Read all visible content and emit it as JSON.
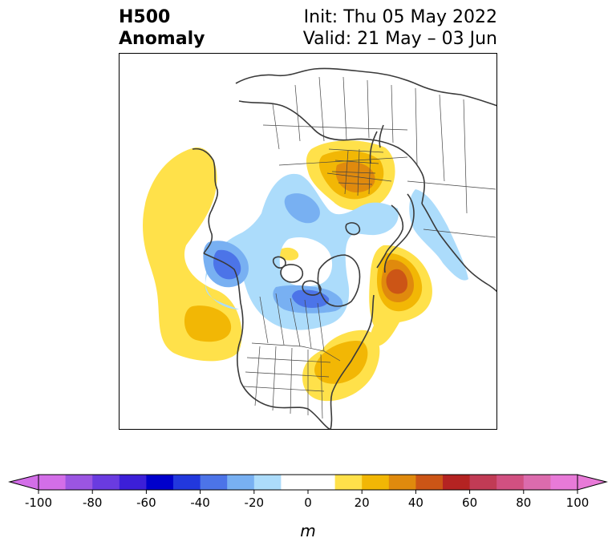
{
  "title": {
    "left_line1": "H500",
    "left_line2": "Anomaly",
    "right_line1": "Init: Thu 05 May 2022",
    "right_line2": "Valid: 21 May – 03 Jun"
  },
  "colorbar": {
    "unit": "m",
    "min": -100,
    "max": 100,
    "step": 10,
    "ticks": [
      "-100",
      "-80",
      "-60",
      "-40",
      "-20",
      "0",
      "20",
      "40",
      "60",
      "80",
      "100"
    ],
    "colors": [
      "#d36ee8",
      "#9b55e2",
      "#6a3be0",
      "#3c1fd8",
      "#0000cc",
      "#2238dd",
      "#4c74e8",
      "#78b0f2",
      "#acdcfb",
      "#ffffff",
      "#ffffff",
      "#ffe14a",
      "#f2b705",
      "#e08a0d",
      "#cc5516",
      "#b42322",
      "#c13b55",
      "#d15081",
      "#dc6bad",
      "#e87ad8"
    ],
    "under_color": "#d36ee8",
    "over_color": "#e87ad8"
  }
}
